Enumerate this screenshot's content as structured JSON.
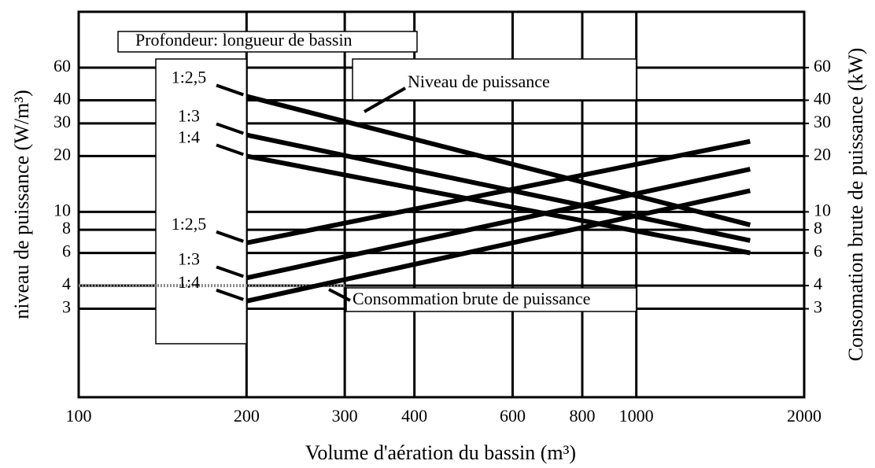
{
  "chart_data": {
    "type": "line",
    "y_label": "niveau de puissance (W/m³)",
    "y2_label": "Consomation brute de puissance (kW)",
    "x_label": "Volume d'aération du bassin (m³)",
    "annotations": [
      "Profondeur: longueur de bassin",
      "Niveau de puissance",
      "Consommation brute de puissance"
    ],
    "log_x": true,
    "log_y": true,
    "grid": true,
    "xlim": [
      100,
      2000
    ],
    "xticks": [
      100,
      200,
      300,
      400,
      600,
      800,
      1000,
      2000
    ],
    "ylim": [
      1,
      120
    ],
    "yticks": [
      3,
      4,
      6,
      8,
      10,
      20,
      30,
      40,
      60
    ],
    "y2lim": [
      1,
      120
    ],
    "y2ticks": [
      3,
      4,
      6,
      8,
      10,
      20,
      30,
      40,
      60
    ],
    "x": [
      200,
      1600
    ],
    "series": [
      {
        "name": "1:2,5",
        "color": "#000000",
        "values": [
          42,
          8.5
        ]
      },
      {
        "name": "1:3",
        "color": "#000000",
        "values": [
          26,
          7
        ]
      },
      {
        "name": "1:4",
        "color": "#000000",
        "values": [
          20,
          6
        ]
      },
      {
        "name": "1:2,5",
        "color": "#000000",
        "axis": "y2",
        "values": [
          6.8,
          24
        ]
      },
      {
        "name": "1:3",
        "color": "#000000",
        "axis": "y2",
        "values": [
          4.4,
          17
        ]
      },
      {
        "name": "1:4",
        "color": "#000000",
        "axis": "y2",
        "values": [
          3.3,
          13
        ]
      }
    ]
  }
}
